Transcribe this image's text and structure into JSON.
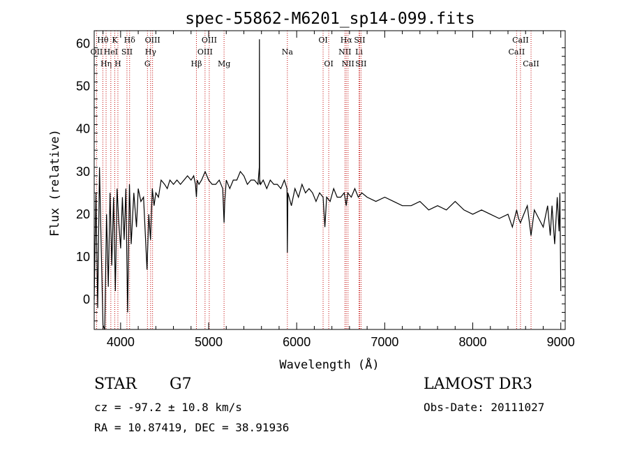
{
  "chart_data": {
    "type": "line",
    "title": "spec-55862-M6201_sp14-099.fits",
    "xlabel": "Wavelength (Å)",
    "ylabel": "Flux (relative)",
    "xlim": [
      3700,
      9050
    ],
    "ylim": [
      -7,
      63
    ],
    "xticks": [
      4000,
      5000,
      6000,
      7000,
      8000,
      9000
    ],
    "yticks": [
      0,
      10,
      20,
      30,
      40,
      50,
      60
    ],
    "series": [
      {
        "name": "spectrum",
        "x": [
          3700,
          3720,
          3740,
          3760,
          3780,
          3800,
          3820,
          3840,
          3860,
          3880,
          3900,
          3920,
          3940,
          3960,
          3980,
          4000,
          4020,
          4040,
          4060,
          4080,
          4100,
          4120,
          4150,
          4180,
          4200,
          4230,
          4260,
          4300,
          4320,
          4340,
          4360,
          4380,
          4400,
          4430,
          4460,
          4500,
          4530,
          4560,
          4600,
          4640,
          4680,
          4720,
          4760,
          4800,
          4830,
          4850,
          4861,
          4870,
          4890,
          4920,
          4960,
          5000,
          5040,
          5080,
          5120,
          5160,
          5175,
          5183,
          5200,
          5240,
          5280,
          5320,
          5360,
          5400,
          5440,
          5480,
          5520,
          5560,
          5575,
          5577,
          5579,
          5581,
          5590,
          5620,
          5660,
          5700,
          5740,
          5780,
          5820,
          5860,
          5890,
          5894,
          5900,
          5940,
          5980,
          6020,
          6060,
          6100,
          6140,
          6180,
          6220,
          6260,
          6300,
          6320,
          6340,
          6380,
          6420,
          6460,
          6500,
          6540,
          6563,
          6580,
          6620,
          6660,
          6700,
          6740,
          6800,
          6900,
          7000,
          7100,
          7200,
          7300,
          7400,
          7500,
          7600,
          7700,
          7800,
          7900,
          8000,
          8100,
          8200,
          8300,
          8400,
          8450,
          8498,
          8520,
          8542,
          8580,
          8620,
          8662,
          8700,
          8750,
          8800,
          8850,
          8880,
          8900,
          8930,
          8960,
          8980,
          8990,
          9000
        ],
        "y": [
          0,
          25,
          -2,
          31,
          12,
          -6,
          -7,
          20,
          3,
          25,
          8,
          24,
          2,
          26,
          18,
          12,
          24,
          14,
          26,
          -3,
          27,
          13,
          25,
          17,
          26,
          23,
          24,
          7,
          20,
          14,
          26,
          22,
          25,
          24,
          28,
          27,
          26,
          28,
          27,
          28,
          27,
          28,
          29,
          28,
          29,
          27,
          24,
          28,
          27,
          28,
          30,
          28,
          27,
          27,
          28,
          26,
          18,
          23,
          28,
          26,
          28,
          28,
          30,
          29,
          27,
          28,
          28,
          27,
          31,
          61,
          27,
          28,
          27,
          28,
          26,
          28,
          27,
          27,
          26,
          28,
          26,
          11,
          25,
          22,
          26,
          24,
          27,
          25,
          26,
          25,
          23,
          25,
          24,
          17,
          24,
          23,
          26,
          24,
          24,
          25,
          22,
          25,
          24,
          26,
          24,
          25,
          24,
          23,
          24,
          23,
          22,
          22,
          23,
          21,
          22,
          21,
          23,
          21,
          20,
          21,
          20,
          19,
          20,
          17,
          21,
          19,
          18,
          20,
          22,
          15,
          21,
          19,
          17,
          22,
          15,
          22,
          13,
          24,
          16,
          25,
          2
        ]
      }
    ],
    "lines": [
      {
        "label": "OII",
        "wavelength": 3727,
        "row": 2
      },
      {
        "label": "Hθ",
        "wavelength": 3798,
        "row": 1
      },
      {
        "label": "Hη",
        "wavelength": 3835,
        "row": 3
      },
      {
        "label": "HeI",
        "wavelength": 3889,
        "row": 2
      },
      {
        "label": "K",
        "wavelength": 3934,
        "row": 1
      },
      {
        "label": "H",
        "wavelength": 3969,
        "row": 3
      },
      {
        "label": "SII",
        "wavelength": 4072,
        "row": 2
      },
      {
        "label": "Hδ",
        "wavelength": 4102,
        "row": 1
      },
      {
        "label": "G",
        "wavelength": 4305,
        "row": 3
      },
      {
        "label": "Hγ",
        "wavelength": 4341,
        "row": 2
      },
      {
        "label": "OIII",
        "wavelength": 4363,
        "row": 1
      },
      {
        "label": "Hβ",
        "wavelength": 4861,
        "row": 3
      },
      {
        "label": "OIII",
        "wavelength": 4959,
        "row": 2
      },
      {
        "label": "OIII",
        "wavelength": 5007,
        "row": 1
      },
      {
        "label": "Mg",
        "wavelength": 5175,
        "row": 3
      },
      {
        "label": "Na",
        "wavelength": 5894,
        "row": 2
      },
      {
        "label": "OI",
        "wavelength": 6300,
        "row": 1
      },
      {
        "label": "OI",
        "wavelength": 6364,
        "row": 3
      },
      {
        "label": "NII",
        "wavelength": 6548,
        "row": 2
      },
      {
        "label": "Hα",
        "wavelength": 6563,
        "row": 1
      },
      {
        "label": "NII",
        "wavelength": 6583,
        "row": 3
      },
      {
        "label": "Li",
        "wavelength": 6708,
        "row": 2
      },
      {
        "label": "SII",
        "wavelength": 6716,
        "row": 1
      },
      {
        "label": "SII",
        "wavelength": 6731,
        "row": 3
      },
      {
        "label": "CaII",
        "wavelength": 8498,
        "row": 2
      },
      {
        "label": "CaII",
        "wavelength": 8542,
        "row": 1
      },
      {
        "label": "CaII",
        "wavelength": 8662,
        "row": 3
      }
    ],
    "line_color": "#c00000",
    "spectrum_color": "#000000"
  },
  "info": {
    "class": "STAR",
    "subclass": "G7",
    "cz": "cz = -97.2 ± 10.8 km/s",
    "radec": "RA =  10.87419, DEC =  38.91936",
    "survey": "LAMOST DR3",
    "obsdate": "Obs-Date: 20111027"
  }
}
